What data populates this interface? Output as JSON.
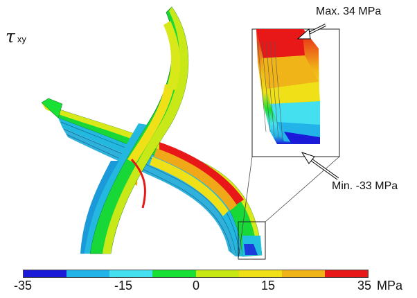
{
  "symbol": {
    "main": "τ",
    "sub": "xy"
  },
  "callouts": {
    "max": "Max. 34 MPa",
    "min": "Min. -33 MPa"
  },
  "colorbar": {
    "ticks": [
      "-35",
      "-15",
      "0",
      "15",
      "35"
    ],
    "unit": "MPa",
    "range": [
      -35,
      35
    ],
    "colors": [
      "#1a1ad8",
      "#22b4e8",
      "#44e0f0",
      "#18e034",
      "#c8e814",
      "#f0e018",
      "#f0b418",
      "#e81818"
    ]
  }
}
